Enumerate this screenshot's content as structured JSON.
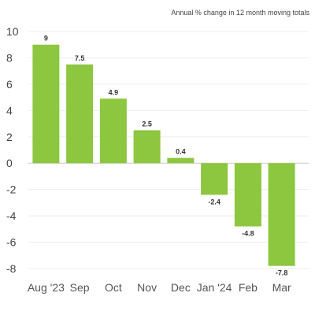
{
  "chart_data": {
    "type": "bar",
    "title": "",
    "subtitle": "Annual % change in 12 month moving totals",
    "xlabel": "",
    "ylabel": "",
    "categories": [
      "Aug '23",
      "Sep",
      "Oct",
      "Nov",
      "Dec",
      "Jan '24",
      "Feb",
      "Mar"
    ],
    "values": [
      9,
      7.5,
      4.9,
      2.5,
      0.4,
      -2.4,
      -4.8,
      -7.8
    ],
    "data_labels": [
      "9",
      "7.5",
      "4.9",
      "2.5",
      "0.4",
      "-2.4",
      "-4.8",
      "-7.8"
    ],
    "y_ticks": [
      10,
      8,
      6,
      4,
      2,
      0,
      -2,
      -4,
      -6,
      -8
    ],
    "ylim": [
      -8,
      10
    ],
    "grid": true,
    "legend": "none",
    "colors": {
      "bar": "#8dc63f",
      "grid": "#eeeeee",
      "zero_line": "#cccccc"
    }
  }
}
